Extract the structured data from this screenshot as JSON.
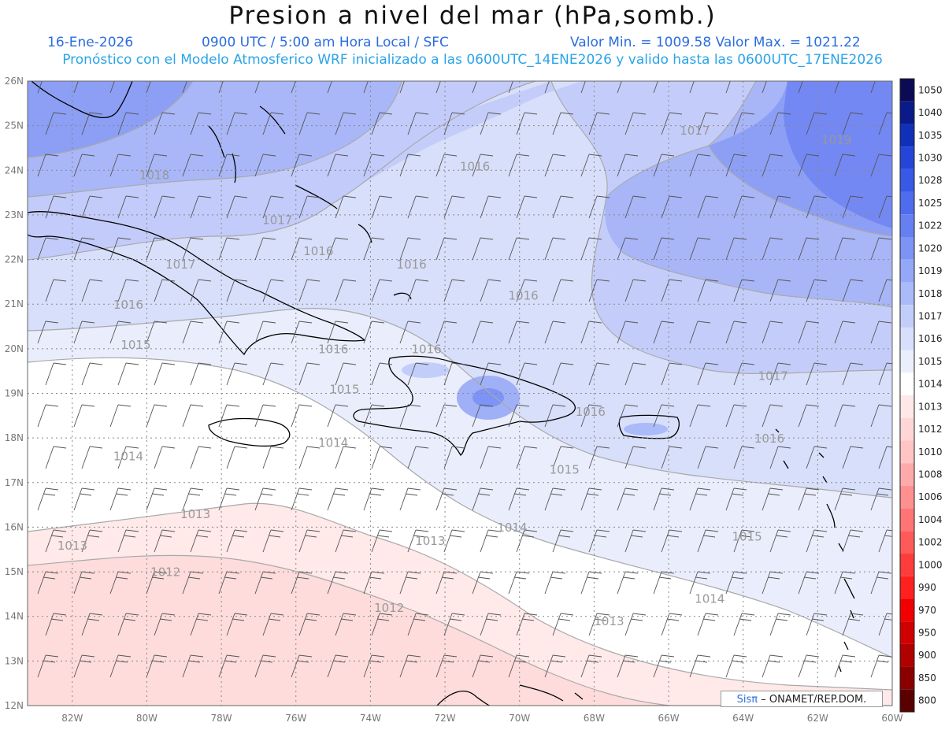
{
  "title": "Presion a nivel del mar (hPa,somb.)",
  "subtitle": {
    "date": "16-Ene-2026",
    "time": "0900 UTC / 5:00 am Hora Local / SFC",
    "min_max": "Valor Min. = 1009.58   Valor Max. = 1021.22"
  },
  "forecast_info": "Pronóstico con el Modelo Atmosferico WRF inicializado a las 0600UTC_14ENE2026 y valido hasta las  0600UTC_17ENE2026",
  "credit": {
    "brand": "Sisπ",
    "org": "– ONAMET/REP.DOM."
  },
  "map": {
    "lon_range": [
      -83.2,
      -60.0
    ],
    "lat_range": [
      12.0,
      26.0
    ],
    "lat_labels": [
      "26N",
      "25N",
      "24N",
      "23N",
      "22N",
      "21N",
      "20N",
      "19N",
      "18N",
      "17N",
      "16N",
      "15N",
      "14N",
      "13N",
      "12N"
    ],
    "lon_labels": [
      "82W",
      "80W",
      "78W",
      "76W",
      "74W",
      "72W",
      "70W",
      "68W",
      "66W",
      "64W",
      "62W",
      "60W"
    ],
    "contour_labels": [
      {
        "text": "1018",
        "lon": -80.2,
        "lat": 23.8
      },
      {
        "text": "1017",
        "lon": -76.9,
        "lat": 22.8
      },
      {
        "text": "1017",
        "lon": -79.5,
        "lat": 21.8
      },
      {
        "text": "1016",
        "lon": -80.9,
        "lat": 20.9
      },
      {
        "text": "1015",
        "lon": -80.7,
        "lat": 20.0
      },
      {
        "text": "1016",
        "lon": -75.8,
        "lat": 22.1
      },
      {
        "text": "1016",
        "lon": -73.3,
        "lat": 21.8
      },
      {
        "text": "1016",
        "lon": -71.6,
        "lat": 24.0
      },
      {
        "text": "1016",
        "lon": -70.3,
        "lat": 21.1
      },
      {
        "text": "1017",
        "lon": -65.7,
        "lat": 24.8
      },
      {
        "text": "1019",
        "lon": -61.9,
        "lat": 24.6
      },
      {
        "text": "1016",
        "lon": -75.4,
        "lat": 19.9
      },
      {
        "text": "1016",
        "lon": -72.9,
        "lat": 19.9
      },
      {
        "text": "1015",
        "lon": -75.1,
        "lat": 19.0
      },
      {
        "text": "1016",
        "lon": -68.5,
        "lat": 18.5
      },
      {
        "text": "1017",
        "lon": -63.6,
        "lat": 19.3
      },
      {
        "text": "1016",
        "lon": -63.7,
        "lat": 17.9
      },
      {
        "text": "1014",
        "lon": -80.9,
        "lat": 17.5
      },
      {
        "text": "1014",
        "lon": -75.4,
        "lat": 17.8
      },
      {
        "text": "1015",
        "lon": -69.2,
        "lat": 17.2
      },
      {
        "text": "1013",
        "lon": -79.1,
        "lat": 16.2
      },
      {
        "text": "1014",
        "lon": -70.6,
        "lat": 15.9
      },
      {
        "text": "1013",
        "lon": -72.8,
        "lat": 15.6
      },
      {
        "text": "1015",
        "lon": -64.3,
        "lat": 15.7
      },
      {
        "text": "1013",
        "lon": -82.4,
        "lat": 15.5
      },
      {
        "text": "1012",
        "lon": -79.9,
        "lat": 14.9
      },
      {
        "text": "1012",
        "lon": -73.9,
        "lat": 14.1
      },
      {
        "text": "1013",
        "lon": -68.0,
        "lat": 13.8
      },
      {
        "text": "1014",
        "lon": -65.3,
        "lat": 14.3
      }
    ]
  },
  "colorbar": {
    "labels": [
      "1050",
      "1040",
      "1035",
      "1030",
      "1028",
      "1025",
      "1022",
      "1020",
      "1019",
      "1018",
      "1017",
      "1016",
      "1015",
      "1014",
      "1013",
      "1012",
      "1010",
      "1008",
      "1006",
      "1004",
      "1002",
      "1000",
      "990",
      "970",
      "950",
      "900",
      "850",
      "800"
    ],
    "colors": [
      "#0a0a55",
      "#0b1a8a",
      "#1030b8",
      "#2545d8",
      "#3858e6",
      "#4e6cee",
      "#6680f2",
      "#7d93f5",
      "#95a7f7",
      "#abbaf8",
      "#c2cdfa",
      "#d8dffb",
      "#eaeefd",
      "#ffffff",
      "#ffe8e8",
      "#ffd6d6",
      "#ffc4c4",
      "#ffaaaa",
      "#ff9090",
      "#ff7575",
      "#ff5a5a",
      "#ff3c3c",
      "#ff2020",
      "#f00000",
      "#d00000",
      "#b00000",
      "#8a0000",
      "#5a0000"
    ]
  },
  "colors": {
    "title": "#111111",
    "subtitle": "#2a6de0",
    "forecast_info": "#2aa4e8",
    "grid": "#888888",
    "contour": "#a9a9a9"
  }
}
